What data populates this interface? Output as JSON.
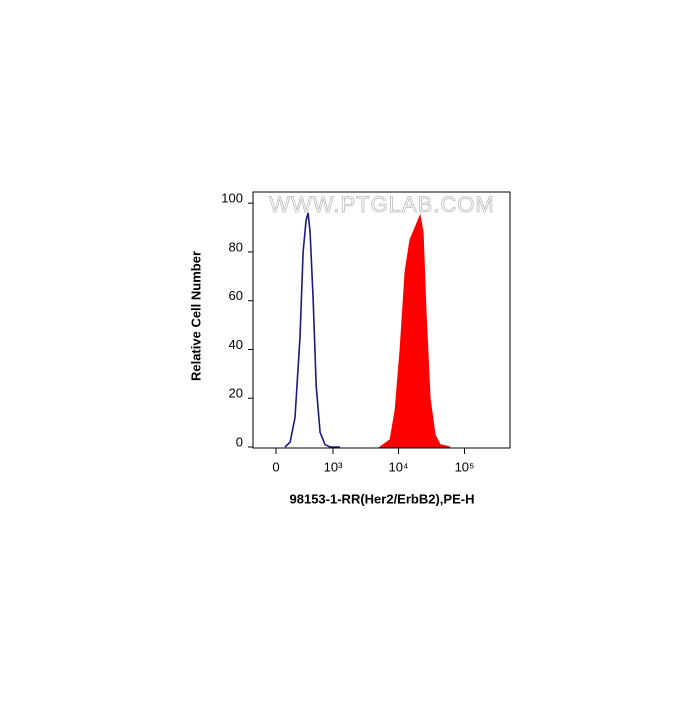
{
  "chart_data": {
    "type": "histogram-overlay",
    "watermark": "WWW.PTGLAB.COM",
    "x_label": "98153-1-RR(Her2/ErbB2),PE-H",
    "y_label": "Relative Cell Number",
    "x_scale": "biexponential",
    "xlim": [
      -249,
      489000
    ],
    "xticks": [
      0,
      {
        "value": 1000,
        "label": "10³"
      },
      {
        "value": 10000,
        "label": "10⁴"
      },
      {
        "value": 100000,
        "label": "10⁵"
      }
    ],
    "ylim": [
      0,
      105
    ],
    "yticks": [
      0,
      20,
      40,
      60,
      80,
      100
    ],
    "series": [
      {
        "color": "#1a1a80",
        "filled": false,
        "x": [
          89,
          142,
          199,
          262,
          304,
          349,
          381,
          416,
          472,
          532,
          619,
          745,
          896,
          1283
        ],
        "values": [
          0,
          2,
          12,
          45,
          80,
          93,
          96,
          88,
          60,
          25,
          6,
          1,
          0,
          0
        ]
      },
      {
        "color": "#ff0000",
        "filled": true,
        "x": [
          5250,
          7450,
          8870,
          10570,
          12580,
          14960,
          17820,
          19790,
          21230,
          23570,
          26160,
          30070,
          35800,
          42620,
          60430
        ],
        "values": [
          0,
          3,
          15,
          40,
          72,
          85,
          90,
          93,
          95,
          88,
          55,
          20,
          5,
          1,
          0
        ]
      }
    ]
  }
}
